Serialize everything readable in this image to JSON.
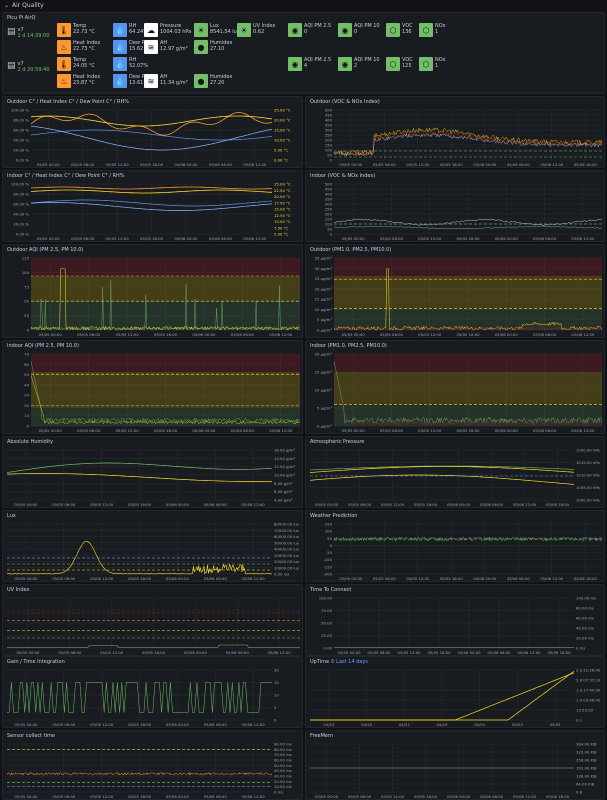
{
  "row": {
    "title": "Air Quality"
  },
  "device_panel": {
    "title": "Picu Pi AirQ"
  },
  "devices": [
    {
      "version": "v7",
      "uptime": "1 d 14:39:00",
      "stats": [
        {
          "label": "Temp",
          "value": "22.73 °C",
          "color": "#ff9830",
          "icon": "thermometer-icon"
        },
        {
          "label": "RH",
          "value": "64.24%",
          "color": "#5794f2",
          "icon": "droplet-icon"
        },
        {
          "label": "Pressure",
          "value": "1004.03 hPa",
          "color": "#ffffff",
          "icon": "cloud-icon"
        },
        {
          "label": "Lux",
          "value": "8541.54 lux",
          "color": "#73bf69",
          "icon": "sun-icon"
        },
        {
          "label": "UV Index",
          "value": "0.62",
          "color": "#73bf69",
          "icon": "uv-icon"
        },
        {
          "label": "AQI PM 2.5",
          "value": "0",
          "color": "#73bf69",
          "icon": "aqi-pm25-icon"
        },
        {
          "label": "AQI PM 10",
          "value": "0",
          "color": "#73bf69",
          "icon": "aqi-pm10-icon"
        },
        {
          "label": "VOC",
          "value": "136",
          "color": "#73bf69",
          "icon": "voc-icon"
        },
        {
          "label": "NOx",
          "value": "1",
          "color": "#73bf69",
          "icon": "nox-icon"
        },
        {
          "label": "Heat Index",
          "value": "22.73 °C",
          "color": "#ff9830",
          "icon": "heat-icon"
        },
        {
          "label": "Dew Point",
          "value": "15.62 °C",
          "color": "#5794f2",
          "icon": "dew-icon"
        },
        {
          "label": "AH",
          "value": "12.97 g/m³",
          "color": "#ffffff",
          "icon": "ah-icon"
        },
        {
          "label": "Humidex",
          "value": "27.10",
          "color": "#73bf69",
          "icon": "humidex-icon"
        }
      ]
    },
    {
      "version": "v7",
      "uptime": "2 d 20:59:40",
      "stats": [
        {
          "label": "Temp",
          "value": "24.05 °C",
          "color": "#ff9830",
          "icon": "thermometer-icon"
        },
        {
          "label": "RH",
          "value": "52.07%",
          "color": "#5794f2",
          "icon": "droplet-icon"
        },
        {
          "label": "AQI PM 2.5",
          "value": "4",
          "color": "#73bf69",
          "icon": "aqi-pm25-icon"
        },
        {
          "label": "AQI PM 10",
          "value": "2",
          "color": "#73bf69",
          "icon": "aqi-pm10-icon"
        },
        {
          "label": "VOC",
          "value": "125",
          "color": "#73bf69",
          "icon": "voc-icon"
        },
        {
          "label": "NOx",
          "value": "1",
          "color": "#73bf69",
          "icon": "nox-icon"
        },
        {
          "label": "Heat Index",
          "value": "23.87 °C",
          "color": "#ff9830",
          "icon": "heat-icon"
        },
        {
          "label": "Dew Point",
          "value": "13.61 °C",
          "color": "#5794f2",
          "icon": "dew-icon"
        },
        {
          "label": "AH",
          "value": "11.34 g/m³",
          "color": "#ffffff",
          "icon": "ah-icon"
        },
        {
          "label": "Humidex",
          "value": "27.20",
          "color": "#73bf69",
          "icon": "humidex-icon"
        }
      ]
    }
  ],
  "panels": [
    {
      "title": "Outdoor C° / Heat Index C° / Dew Point C° / RH%",
      "yleft": [
        "100.00 %",
        "80.00 %",
        "60.00 %",
        "40.00 %",
        "20.00 %",
        "0.00 %"
      ],
      "yright": [
        "25.00 °C",
        "20.00 °C",
        "15.00 °C",
        "10.00 °C",
        "5.00 °C",
        "0.00 °C"
      ],
      "xticks": [
        "05/05 00:00",
        "05/05 06:00",
        "05/05 12:00",
        "05/05 18:00",
        "05/06 00:00",
        "05/06 06:00",
        "05/06 12:00"
      ]
    },
    {
      "title": "Outdoor (VOC & NOx Index)",
      "yleft": [
        "500",
        "450",
        "400",
        "350",
        "300",
        "250",
        "200",
        "150",
        "100",
        "50",
        "0"
      ],
      "xticks": [
        "05/05 00:00",
        "05/05 06:00",
        "05/05 12:00",
        "05/05 18:00",
        "05/06 00:00",
        "05/06 06:00",
        "05/06 12:00",
        "05/06 18:00"
      ]
    },
    {
      "title": "Indoor C° / Heat Index C° / Dew Point C° / RH%",
      "yleft": [
        "100.00 %",
        "80.00 %",
        "60.00 %",
        "40.00 %",
        "20.00 %",
        "0.00 %"
      ],
      "yright": [
        "25.00 °C",
        "22.50 °C",
        "20.00 °C",
        "17.50 °C",
        "15.00 °C",
        "12.50 °C",
        "10.00 °C",
        "7.50 °C",
        "5.00 °C"
      ],
      "xticks": [
        "05/05 00:00",
        "05/05 06:00",
        "05/05 12:00",
        "05/05 18:00",
        "05/06 00:00",
        "05/06 06:00",
        "05/06 12:00"
      ]
    },
    {
      "title": "Indoor (VOC & NOx Index)",
      "yleft": [
        "500",
        "450",
        "400",
        "350",
        "300",
        "250",
        "200",
        "150",
        "100",
        "50",
        "0"
      ],
      "xticks": [
        "05/05 00:00",
        "05/05 06:00",
        "05/05 12:00",
        "05/05 18:00",
        "05/06 00:00",
        "05/06 06:00",
        "05/06 12:00"
      ]
    },
    {
      "title": "Outdoor AQI (PM 2.5, PM 10.0)",
      "yleft": [
        "125",
        "100",
        "75",
        "50",
        "25",
        "0"
      ],
      "xticks": [
        "05/05 00:00",
        "05/05 06:00",
        "05/05 12:00",
        "05/05 18:00",
        "05/06 00:00",
        "05/06 06:00",
        "05/06 12:00"
      ]
    },
    {
      "title": "Outdoor (PM1.0, PM2.5, PM10.0)",
      "yleft": [
        "35 µg/m³",
        "30 µg/m³",
        "25 µg/m³",
        "20 µg/m³",
        "15 µg/m³",
        "10 µg/m³",
        "5 µg/m³",
        "0 µg/m³"
      ],
      "xticks": [
        "05/05 00:00",
        "05/05 06:00",
        "05/05 12:00",
        "05/05 18:00",
        "05/06 00:00",
        "05/06 06:00",
        "05/06 12:00"
      ]
    },
    {
      "title": "Indoor AQI (PM 2.5, PM 10.0)",
      "yleft": [
        "70",
        "60",
        "50",
        "40",
        "30",
        "20",
        "10",
        "0"
      ],
      "xticks": [
        "05/05 00:00",
        "05/05 06:00",
        "05/05 12:00",
        "05/05 18:00",
        "05/06 00:00",
        "05/06 06:00",
        "05/06 12:00"
      ]
    },
    {
      "title": "Indoor (PM1.0, PM2.5, PM10.0)",
      "yleft": [
        "20 µg/m³",
        "15 µg/m³",
        "10 µg/m³",
        "5 µg/m³",
        "0 µg/m³"
      ],
      "xticks": [
        "05/05 00:00",
        "05/05 06:00",
        "05/05 12:00",
        "05/05 18:00",
        "05/06 00:00",
        "05/06 06:00",
        "05/06 12:00"
      ]
    },
    {
      "title": "Absolute Humidity",
      "yright": [
        "16.00 g/m³",
        "14.00 g/m³",
        "12.00 g/m³",
        "10.00 g/m³",
        "8.00 g/m³",
        "6.00 g/m³",
        "4.00 g/m³"
      ],
      "xticks": [
        "05/05 00:00",
        "05/05 06:00",
        "05/05 12:00",
        "05/05 18:00",
        "05/06 00:00",
        "05/06 06:00",
        "05/06 12:00"
      ]
    },
    {
      "title": "Atmospheric Pressure",
      "yright": [
        "1020.00 hPa",
        "1015.00 hPa",
        "1010.00 hPa",
        "1005.00 hPa",
        "1000.00 hPa"
      ],
      "xticks": [
        "05/05 00:00",
        "05/05 06:00",
        "05/05 12:00",
        "05/05 18:00",
        "05/06 00:00",
        "05/06 06:00",
        "05/06 12:00",
        "05/06 18:00"
      ]
    },
    {
      "title": "Lux",
      "yright": [
        "80000.00 lux",
        "70000.00 lux",
        "60000.00 lux",
        "50000.00 lux",
        "40000.00 lux",
        "30000.00 lux",
        "20000.00 lux",
        "10000.00 lux",
        "0.00 lux"
      ],
      "xticks": [
        "05/05 00:00",
        "05/05 06:00",
        "05/05 12:00",
        "05/05 18:00",
        "05/06 00:00",
        "05/06 06:00",
        "05/06 12:00"
      ]
    },
    {
      "title": "Weather Prediction",
      "yleft": [
        "150",
        "100",
        "50",
        "0",
        "-50",
        "-100",
        "-150",
        "-200"
      ],
      "xticks": [
        "05/05 00:00",
        "05/05 06:00",
        "05/05 12:00",
        "05/05 18:00",
        "05/06 00:00",
        "05/06 06:00",
        "05/06 12:00",
        "05/06 18:00"
      ]
    },
    {
      "title": "UV Index",
      "xticks": [
        "05/05 00:00",
        "05/05 06:00",
        "05/05 12:00",
        "05/05 18:00",
        "05/06 00:00",
        "05/06 06:00",
        "05/06 12:00"
      ]
    },
    {
      "title": "Time To Connect",
      "yleft": [
        "100.00",
        "75.00",
        "50.00",
        "25.00",
        "0.00"
      ],
      "yright": [
        "100.00 ms",
        "80.00 ms",
        "60.00 ms",
        "40.00 ms",
        "20.00 ms",
        "0 ms"
      ],
      "xticks": [
        "05/05 00:00",
        "05/05 06:00",
        "05/05 12:00",
        "05/05 18:00",
        "05/06 00:00",
        "05/06 06:00",
        "05/06 12:00",
        "05/06 18:00"
      ]
    },
    {
      "title": "Gain / Time Integration",
      "yright": [
        "20",
        "15",
        "10",
        "5",
        "0"
      ],
      "xticks": [
        "05/05 00:00",
        "05/05 06:00",
        "05/05 12:00",
        "05/05 18:00",
        "05/06 00:00",
        "05/06 06:00",
        "05/06 12:00"
      ]
    },
    {
      "title": "UpTime",
      "range": "Last 14 days",
      "yright": [
        "2 d 21:26:40",
        "2 d 07:33:20",
        "1 d 17:40:00",
        "1 d 03:46:40",
        "13:53:20",
        "0 s"
      ],
      "xticks": [
        "04/23",
        "04/25",
        "04/27",
        "04/29",
        "05/01",
        "05/03",
        "05/05"
      ]
    },
    {
      "title": "Sensor collect time",
      "yright": [
        "90.00 ms",
        "80.00 ms",
        "70.00 ms",
        "60.00 ms",
        "50.00 ms",
        "40.00 ms",
        "30.00 ms",
        "20.00 ms",
        "10.00 ms",
        "0 ms"
      ],
      "xticks": [
        "05/05 00:00",
        "05/05 06:00",
        "05/05 12:00",
        "05/05 18:00",
        "05/06 00:00",
        "05/06 06:00",
        "05/06 12:00"
      ]
    },
    {
      "title": "FreeMem",
      "yright": [
        "384.00 KiB",
        "320.00 KiB",
        "256.00 KiB",
        "192.00 KiB",
        "128.00 KiB",
        "64.00 KiB",
        "0 B"
      ],
      "xticks": [
        "05/05 00:00",
        "05/05 06:00",
        "05/05 12:00",
        "05/05 18:00",
        "05/06 00:00",
        "05/06 06:00",
        "05/06 12:00",
        "05/06 18:00"
      ]
    }
  ],
  "colors": {
    "bg": "#111217",
    "panel": "#181b1f",
    "green": "#73bf69",
    "yellow": "#fade2a",
    "orange": "#ff9830",
    "blue": "#5794f2",
    "red": "#f2495c",
    "text": "#ccccdc"
  }
}
